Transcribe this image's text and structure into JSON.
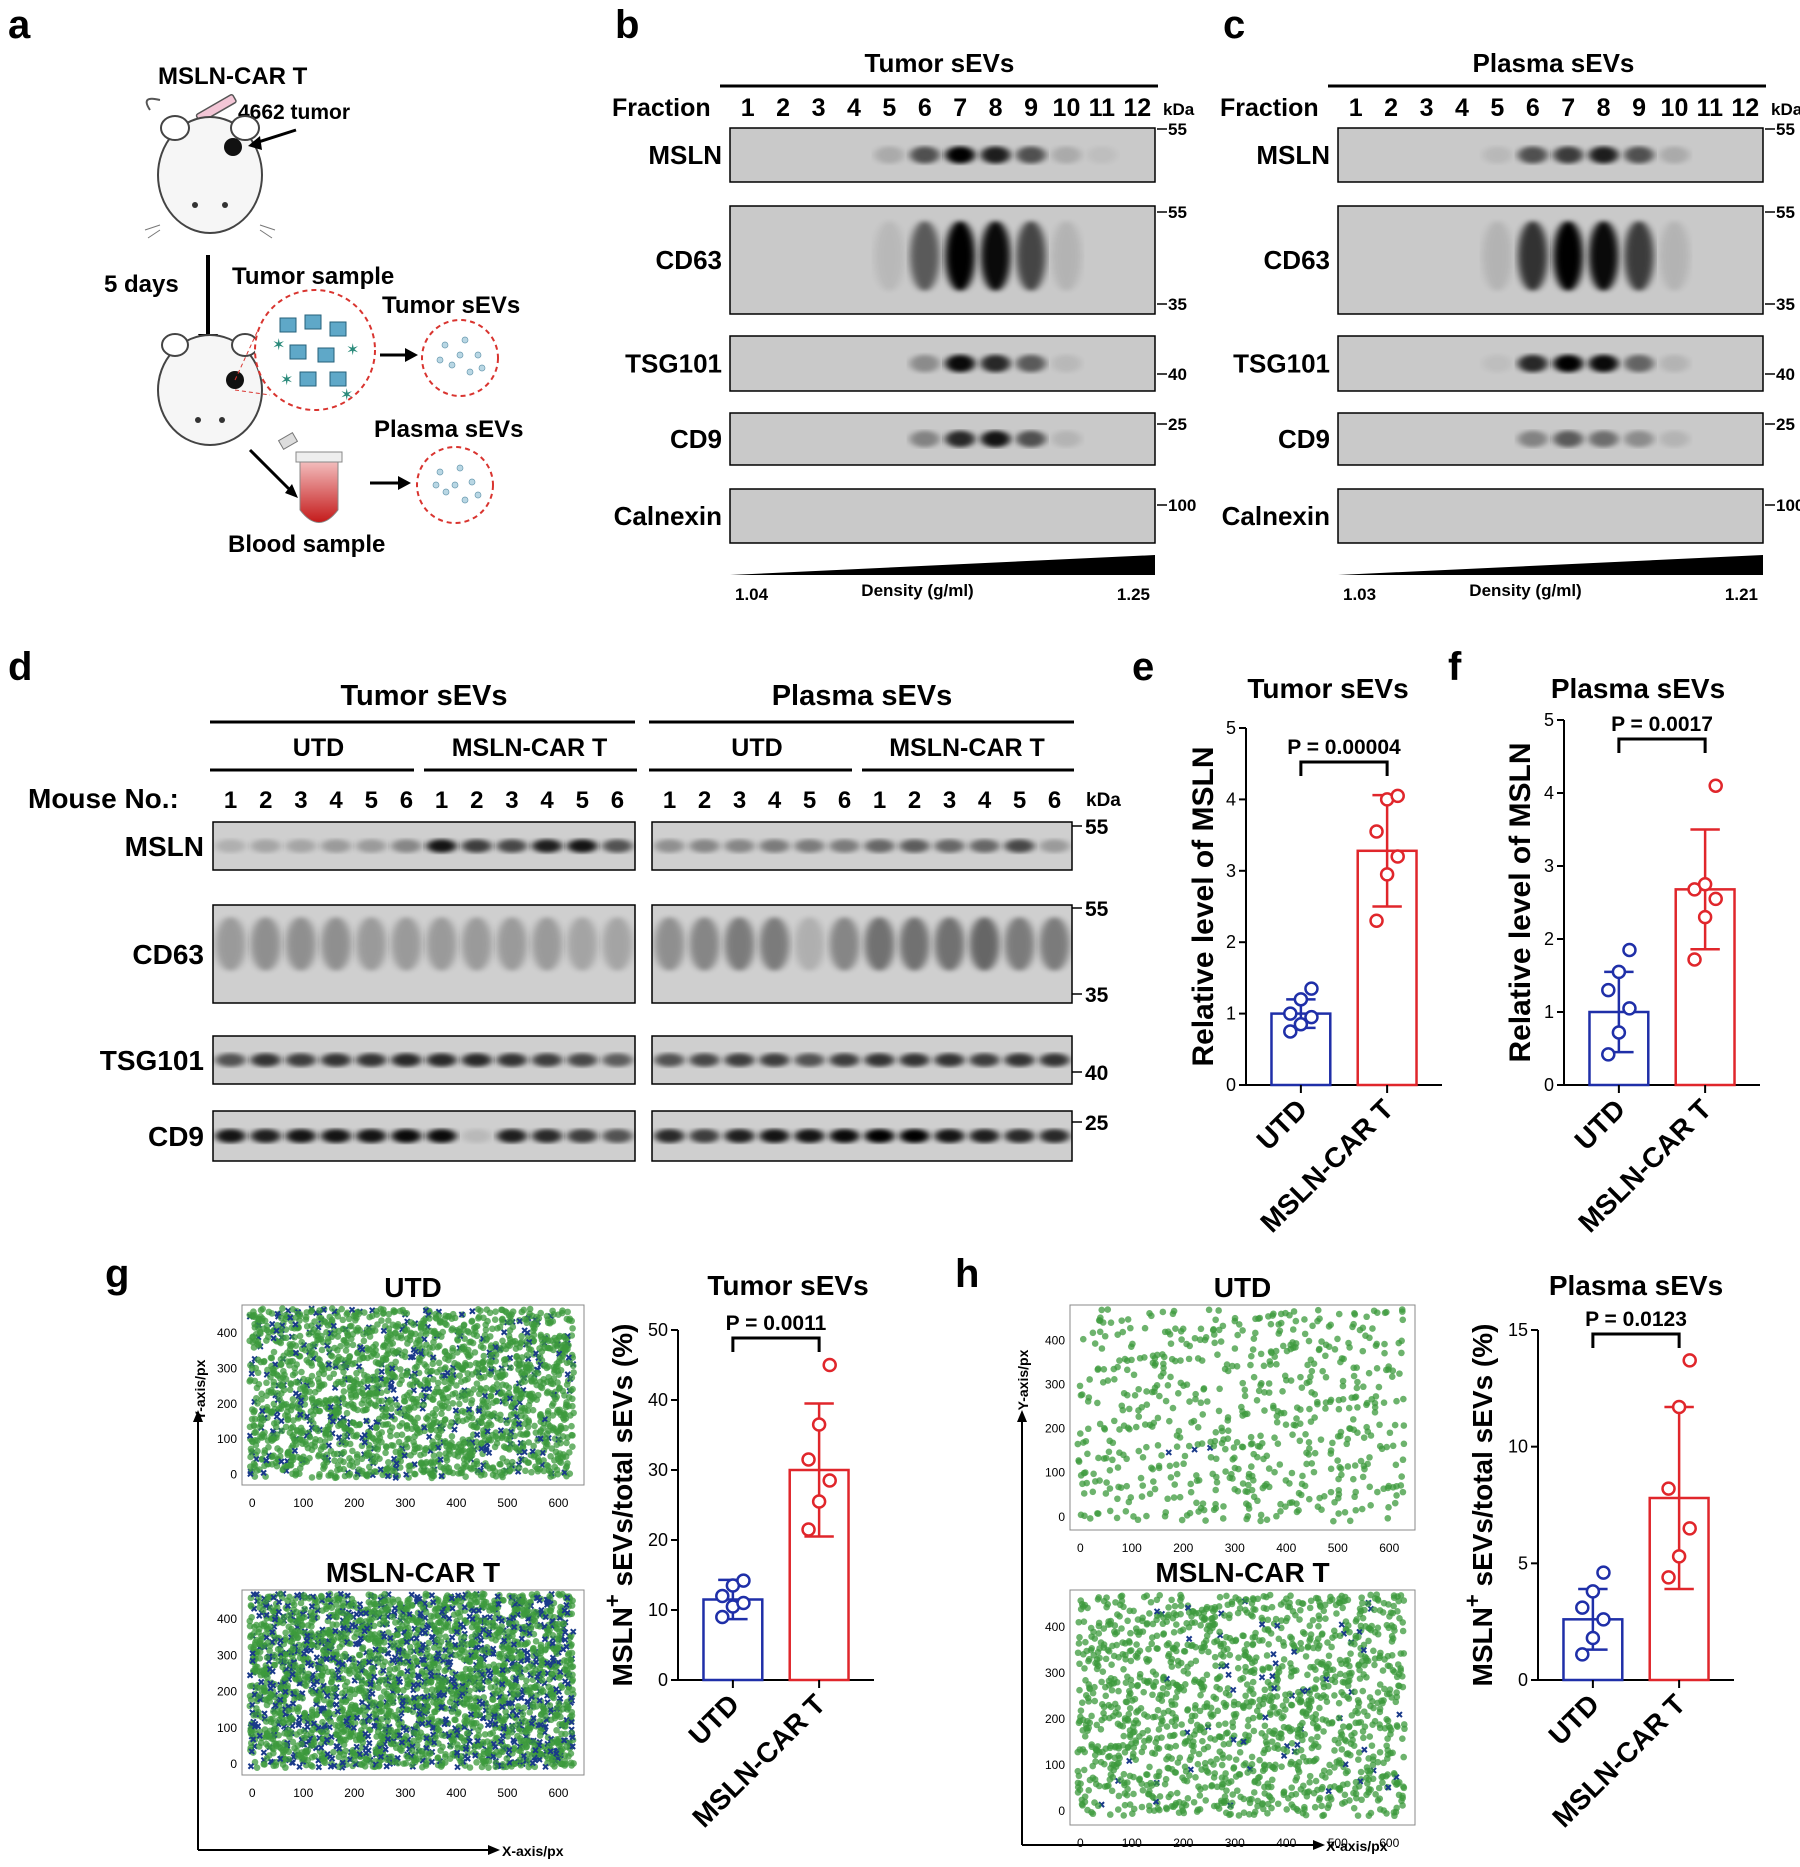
{
  "panels": {
    "a": {
      "letter": "a",
      "car_label": "MSLN-CAR T",
      "tumor_label": "4662 tumor",
      "days_label": "5 days",
      "tumor_sample": "Tumor sample",
      "tumor_sevs": "Tumor sEVs",
      "plasma_sevs": "Plasma sEVs",
      "blood_sample": "Blood sample"
    },
    "b": {
      "letter": "b",
      "title": "Tumor sEVs",
      "fraction_label": "Fraction",
      "fractions": [
        "1",
        "2",
        "3",
        "4",
        "5",
        "6",
        "7",
        "8",
        "9",
        "10",
        "11",
        "12"
      ],
      "kda": "kDa",
      "proteins": [
        "MSLN",
        "CD63",
        "TSG101",
        "CD9",
        "Calnexin"
      ],
      "markers": [
        "55",
        "55",
        "35",
        "40",
        "25",
        "100"
      ],
      "density_label": "Density (g/ml)",
      "density_min": "1.04",
      "density_max": "1.25"
    },
    "c": {
      "letter": "c",
      "title": "Plasma sEVs",
      "fraction_label": "Fraction",
      "fractions": [
        "1",
        "2",
        "3",
        "4",
        "5",
        "6",
        "7",
        "8",
        "9",
        "10",
        "11",
        "12"
      ],
      "kda": "kDa",
      "proteins": [
        "MSLN",
        "CD63",
        "TSG101",
        "CD9",
        "Calnexin"
      ],
      "markers": [
        "55",
        "55",
        "35",
        "40",
        "25",
        "100"
      ],
      "density_label": "Density (g/ml)",
      "density_min": "1.03",
      "density_max": "1.21"
    },
    "d": {
      "letter": "d",
      "tumor_title": "Tumor  sEVs",
      "plasma_title": "Plasma sEVs",
      "utd": "UTD",
      "car": "MSLN-CAR T",
      "mouse_label": "Mouse No.:",
      "mice": [
        "1",
        "2",
        "3",
        "4",
        "5",
        "6"
      ],
      "kda": "kDa",
      "proteins": [
        "MSLN",
        "CD63",
        "TSG101",
        "CD9"
      ],
      "markers": [
        "55",
        "55",
        "35",
        "40",
        "25"
      ]
    },
    "e": {
      "letter": "e"
    },
    "f": {
      "letter": "f"
    },
    "g": {
      "letter": "g",
      "scatter_top_title": "UTD",
      "scatter_bottom_title": "MSLN-CAR T",
      "y_axis_label": "Y-axis/px",
      "x_axis_label": "X-axis/px"
    },
    "h": {
      "letter": "h",
      "scatter_top_title": "UTD",
      "scatter_bottom_title": "MSLN-CAR T",
      "y_axis_label": "Y-axis/px",
      "x_axis_label": "X-axis/px"
    }
  },
  "colors": {
    "utd": "#1f2fa8",
    "car": "#e0262b",
    "dot_green": "#3c9a3c",
    "dot_blue": "#1a3a8a"
  },
  "chart_data": [
    {
      "id": "e",
      "type": "bar",
      "title": "Tumor sEVs",
      "categories": [
        "UTD",
        "MSLN-CAR T"
      ],
      "values": [
        1.0,
        3.28
      ],
      "sd": [
        0.2,
        0.78
      ],
      "points": [
        [
          0.75,
          0.85,
          0.95,
          1.0,
          1.2,
          1.35
        ],
        [
          2.3,
          2.95,
          3.2,
          3.55,
          4.0,
          4.05
        ]
      ],
      "ylabel": "Relative level of MSLN",
      "ylim": [
        0,
        5
      ],
      "yticks": [
        0,
        1,
        2,
        3,
        4,
        5
      ],
      "p_value": "P = 0.00004"
    },
    {
      "id": "f",
      "type": "bar",
      "title": "Plasma sEVs",
      "categories": [
        "UTD",
        "MSLN-CAR T"
      ],
      "values": [
        1.0,
        2.68
      ],
      "sd": [
        0.55,
        0.82
      ],
      "points": [
        [
          0.42,
          0.72,
          1.05,
          1.3,
          1.55,
          1.85
        ],
        [
          1.72,
          2.3,
          2.55,
          2.68,
          2.75,
          4.1
        ]
      ],
      "ylabel": "Relative level  of MSLN",
      "ylim": [
        0,
        5
      ],
      "yticks": [
        0,
        1,
        2,
        3,
        4,
        5
      ],
      "p_value": "P = 0.0017"
    },
    {
      "id": "g",
      "type": "bar",
      "title": "Tumor  sEVs",
      "categories": [
        "UTD",
        "MSLN-CAR T"
      ],
      "values": [
        11.5,
        30.0
      ],
      "sd": [
        2.8,
        9.5
      ],
      "points": [
        [
          9.0,
          10.5,
          11.0,
          12.0,
          13.5,
          14.2
        ],
        [
          21.5,
          25.5,
          28.5,
          31.5,
          36.5,
          45.0
        ]
      ],
      "ylabel": "MSLN+ sEVs/total sEVs (%)",
      "ylim": [
        0,
        50
      ],
      "yticks": [
        0,
        10,
        20,
        30,
        40,
        50
      ],
      "p_value": "P = 0.0011"
    },
    {
      "id": "h",
      "type": "bar",
      "title": "Plasma sEVs",
      "categories": [
        "UTD",
        "MSLN-CAR T"
      ],
      "values": [
        2.6,
        7.8
      ],
      "sd": [
        1.3,
        3.9
      ],
      "points": [
        [
          1.1,
          1.8,
          2.6,
          3.1,
          3.8,
          4.6
        ],
        [
          4.4,
          5.3,
          6.5,
          8.2,
          11.7,
          13.7
        ]
      ],
      "ylabel": "MSLN+ sEVs/total sEVs (%)",
      "ylim": [
        0,
        15
      ],
      "yticks": [
        0,
        5,
        10,
        15
      ],
      "p_value": "P = 0.0123"
    },
    {
      "id": "g-utd",
      "type": "scatter",
      "title": "UTD",
      "xlabel": "X-axis/px",
      "ylabel": "Y-axis/px",
      "xticks": [
        0,
        100,
        200,
        300,
        400,
        500,
        600
      ],
      "yticks": [
        0,
        100,
        200,
        300,
        400
      ],
      "xlim": [
        -20,
        650
      ],
      "ylim": [
        -30,
        480
      ],
      "density": "high",
      "blue_fraction": 0.12
    },
    {
      "id": "g-car",
      "type": "scatter",
      "title": "MSLN-CAR T",
      "xlabel": "X-axis/px",
      "ylabel": "Y-axis/px",
      "xticks": [
        0,
        100,
        200,
        300,
        400,
        500,
        600
      ],
      "yticks": [
        0,
        100,
        200,
        300,
        400
      ],
      "xlim": [
        -20,
        650
      ],
      "ylim": [
        -30,
        480
      ],
      "density": "high",
      "blue_fraction": 0.3
    },
    {
      "id": "h-utd",
      "type": "scatter",
      "title": "UTD",
      "xlabel": "X-axis/px",
      "ylabel": "Y-axis/px",
      "xticks": [
        0,
        100,
        200,
        300,
        400,
        500,
        600
      ],
      "yticks": [
        0,
        100,
        200,
        300,
        400
      ],
      "xlim": [
        -20,
        650
      ],
      "ylim": [
        -30,
        480
      ],
      "density": "low",
      "blue_fraction": 0.01
    },
    {
      "id": "h-car",
      "type": "scatter",
      "title": "MSLN-CAR T",
      "xlabel": "X-axis/px",
      "ylabel": "Y-axis/px",
      "xticks": [
        0,
        100,
        200,
        300,
        400,
        500,
        600
      ],
      "yticks": [
        0,
        100,
        200,
        300,
        400
      ],
      "xlim": [
        -20,
        650
      ],
      "ylim": [
        -30,
        480
      ],
      "density": "medium",
      "blue_fraction": 0.04
    }
  ]
}
